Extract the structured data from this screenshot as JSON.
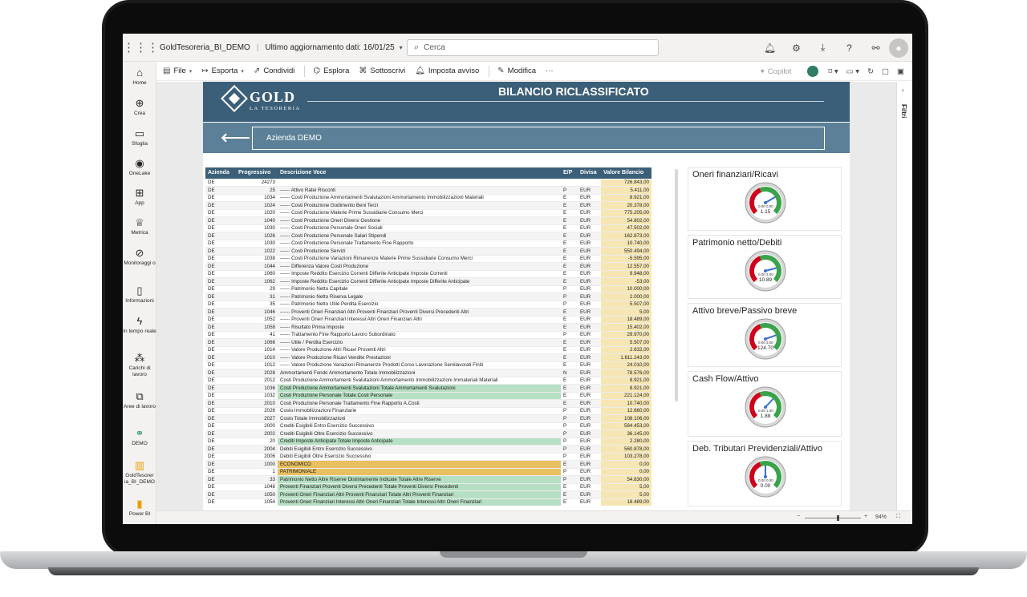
{
  "app": {
    "report_name": "GoldTesoreria_BI_DEMO",
    "last_update": "Ultimo aggiornamento dati: 16/01/25",
    "search_placeholder": "Cerca"
  },
  "leftnav": [
    {
      "label": "Home",
      "icon": "home-icon"
    },
    {
      "label": "Crea",
      "icon": "plus-circle-icon"
    },
    {
      "label": "Sfoglia",
      "icon": "folder-icon"
    },
    {
      "label": "OneLake",
      "icon": "onelake-icon"
    },
    {
      "label": "App",
      "icon": "apps-icon"
    },
    {
      "label": "Metrica",
      "icon": "trophy-icon"
    },
    {
      "label": "Monitoraggi o",
      "icon": "monitor-icon"
    },
    {
      "label": "Informazioni",
      "icon": "book-icon"
    },
    {
      "label": "In tempo reale",
      "icon": "lightning-icon"
    },
    {
      "label": "Carichi di lavoro",
      "icon": "workloads-icon"
    },
    {
      "label": "Aree di lavoro",
      "icon": "workspaces-icon"
    },
    {
      "label": "DEMO",
      "icon": "demo-workspace-icon"
    },
    {
      "label": "GoldTesorer ia_BI_DEMO",
      "icon": "report-icon"
    },
    {
      "label": "Power BI",
      "icon": "powerbi-icon"
    }
  ],
  "commands": {
    "file": "File",
    "export": "Esporta",
    "share": "Condividi",
    "explore": "Esplora",
    "subscribe": "Sottoscrivi",
    "alert": "Imposta avviso",
    "edit": "Modifica",
    "more": "···",
    "copilot": "Copilot"
  },
  "filters_label": "Filtri",
  "report": {
    "logo_text": "GOLD",
    "logo_sub": "LA TESORERIA",
    "title": "BILANCIO RICLASSIFICATO",
    "company": "Azienda DEMO"
  },
  "table": {
    "headers": [
      "Azienda",
      "Progressivo",
      "Descrizione Voce",
      "E/P",
      "Divisa",
      "Valore Bilancio"
    ],
    "rows": [
      [
        "DE",
        "24273",
        "",
        "",
        "",
        "726.843,00",
        ""
      ],
      [
        "DE",
        "25",
        "------ Attivo Ratei Risconti",
        "P",
        "EUR",
        "5.411,00",
        ""
      ],
      [
        "DE",
        "1034",
        "------ Costi Produzione Ammortamenti Svalutazioni Ammortamento Immobilizzazioni Materiali",
        "E",
        "EUR",
        "8.921,00",
        ""
      ],
      [
        "DE",
        "1024",
        "------ Costi Produzione Godimento Beni Terzi",
        "E",
        "EUR",
        "20.378,00",
        ""
      ],
      [
        "DE",
        "1020",
        "------ Costi Produzione Materie Prime Sussidiarie Consumo Merci",
        "E",
        "EUR",
        "775.205,00",
        ""
      ],
      [
        "DE",
        "1040",
        "------ Costi Produzione Oneri Diversi Gestione",
        "E",
        "EUR",
        "54.802,00",
        ""
      ],
      [
        "DE",
        "1030",
        "------ Costi Produzione Personale Oneri Sociali",
        "E",
        "EUR",
        "47.502,00",
        ""
      ],
      [
        "DE",
        "1026",
        "------ Costi Produzione Personale Salari Stipendi",
        "E",
        "EUR",
        "162.873,00",
        ""
      ],
      [
        "DE",
        "1030",
        "------ Costi Produzione Personale Trattamento Fine Rapporto",
        "E",
        "EUR",
        "10.740,00",
        ""
      ],
      [
        "DE",
        "1022",
        "------ Costi Produzione Servizi",
        "E",
        "EUR",
        "550.494,00",
        ""
      ],
      [
        "DE",
        "1038",
        "------ Costi Produzione Variazioni Rimanenze Materie Prime Sussidiarie Consumo Merci",
        "E",
        "EUR",
        "-5.595,00",
        ""
      ],
      [
        "DE",
        "1044",
        "------ Differenza Valore Costi Produzione",
        "E",
        "EUR",
        "12.557,00",
        ""
      ],
      [
        "DE",
        "1060",
        "------ Imposte Reddito Esercizio Correnti Differite Anticipate Imposte Correnti",
        "E",
        "EUR",
        "9.948,00",
        ""
      ],
      [
        "DE",
        "1062",
        "------ Imposte Reddito Esercizio Correnti Differite Anticipate Imposte Differite Anticipate",
        "E",
        "EUR",
        "-53,00",
        ""
      ],
      [
        "DE",
        "29",
        "------ Patrimonio Netto Capitale",
        "P",
        "EUR",
        "10.000,00",
        ""
      ],
      [
        "DE",
        "31",
        "------ Patrimonio Netto Riserva Legale",
        "P",
        "EUR",
        "2.000,00",
        ""
      ],
      [
        "DE",
        "35",
        "------ Patrimonio Netto Utile Perdita Esercizio",
        "P",
        "EUR",
        "5.507,00",
        ""
      ],
      [
        "DE",
        "1046",
        "------ Proventi Oneri Finanziari Altri Proventi Finanziari Proventi Diversi Precedenti Altri",
        "E",
        "EUR",
        "5,00",
        ""
      ],
      [
        "DE",
        "1052",
        "------ Proventi Oneri Finanziari Interessi Altri Oneri Finanziari Altri",
        "E",
        "EUR",
        "18.489,00",
        ""
      ],
      [
        "DE",
        "1058",
        "------ Risultato Prima Imposte",
        "E",
        "EUR",
        "15.402,00",
        ""
      ],
      [
        "DE",
        "41",
        "------ Trattamento Fine Rapporto Lavoro Subordinato",
        "P",
        "EUR",
        "29.970,00",
        ""
      ],
      [
        "DE",
        "1066",
        "------ Utile / Perdita Esercizio",
        "E",
        "EUR",
        "5.507,00",
        ""
      ],
      [
        "DE",
        "1014",
        "------ Valore Produzione Altri Ricavi Proventi Altri",
        "E",
        "EUR",
        "2.632,00",
        ""
      ],
      [
        "DE",
        "1010",
        "------ Valore Produzione Ricavi Vendite Prestazioni",
        "E",
        "EUR",
        "1.611.243,00",
        ""
      ],
      [
        "DE",
        "1012",
        "------ Valore Produzione Variazioni Rimanenze Prodotti Corso Lavorazione Semilavorati Finiti",
        "E",
        "EUR",
        "24.010,00",
        ""
      ],
      [
        "DE",
        "2028",
        "Ammortamenti Fondo Ammortamento Totale Immobilizzazioni",
        "N",
        "EUR",
        "78.576,00",
        ""
      ],
      [
        "DE",
        "2012",
        "Costi Produzione Ammortamenti Svalutazioni Ammortamento Immobilizzazioni Immateriali Materiali",
        "E",
        "EUR",
        "8.921,00",
        ""
      ],
      [
        "DE",
        "1036",
        "Costi Produzione Ammortamenti Svalutazioni Totale Ammortamenti Svalutazioni",
        "E",
        "EUR",
        "8.921,00",
        "green"
      ],
      [
        "DE",
        "1032",
        "Costi Produzione Personale Totale Costi Personale",
        "E",
        "EUR",
        "221.124,00",
        "green"
      ],
      [
        "DE",
        "2010",
        "Costi Produzione Personale Trattamento Fine Rapporto A.Costi",
        "E",
        "EUR",
        "10.740,00",
        ""
      ],
      [
        "DE",
        "2026",
        "Costo Immobilizzazioni Finanziarie",
        "P",
        "EUR",
        "12.660,00",
        ""
      ],
      [
        "DE",
        "2027",
        "Costo Totale Immobilizzazioni",
        "P",
        "EUR",
        "108.106,00",
        ""
      ],
      [
        "DE",
        "2000",
        "Crediti Esigibili Entro Esercizio Successivo",
        "P",
        "EUR",
        "564.453,00",
        ""
      ],
      [
        "DE",
        "2002",
        "Crediti Esigibili Oltre Esercizio Successivo",
        "P",
        "EUR",
        "36.145,00",
        ""
      ],
      [
        "DE",
        "20",
        "Crediti Imposte Anticipate Totale Imposte Anticipate",
        "P",
        "EUR",
        "2.280,00",
        "green"
      ],
      [
        "DE",
        "2004",
        "Debiti Esigibili Entro Esercizio Successivo",
        "P",
        "EUR",
        "560.878,00",
        ""
      ],
      [
        "DE",
        "2006",
        "Debiti Esigibili Oltre Esercizio Successivo",
        "P",
        "EUR",
        "103.278,00",
        ""
      ],
      [
        "DE",
        "1000",
        "ECONOMICO",
        "E",
        "EUR",
        "0,00",
        "gold"
      ],
      [
        "DE",
        "1",
        "PATRIMONIALE",
        "P",
        "EUR",
        "0,00",
        "gold"
      ],
      [
        "DE",
        "33",
        "Patrimonio Netto Altre Riserve Distintamente Indicate Totale Altre Riserve",
        "P",
        "EUR",
        "54.830,00",
        "green"
      ],
      [
        "DE",
        "1048",
        "Proventi Finanziari Proventi Diversi Precedenti Totale Proventi Diversi Precedenti",
        "E",
        "EUR",
        "5,00",
        "green"
      ],
      [
        "DE",
        "1050",
        "Proventi Oneri Finanziari Altri Proventi Finanziari Totale Altri Proventi Finanziari",
        "E",
        "EUR",
        "5,00",
        "green"
      ],
      [
        "DE",
        "1054",
        "Proventi Oneri Finanziari Interessi Altri Oneri Finanziari Totale Interessi Altri Oneri Finanziari",
        "E",
        "EUR",
        "18.489,00",
        "green"
      ]
    ]
  },
  "gauges": [
    {
      "title": "Oneri finanziari/Ricavi",
      "min": "0.00",
      "max": "0.00",
      "value": "1.15",
      "needle": 0.72
    },
    {
      "title": "Patrimonio netto/Debiti",
      "min": "0.00",
      "max": "3.00",
      "value": "10.89",
      "needle": 0.78
    },
    {
      "title": "Attivo breve/Passivo breve",
      "min": "0.00",
      "max": "3.00",
      "value": "124.70",
      "needle": 0.76
    },
    {
      "title": "Cash Flow/Attivo",
      "min": "0.00",
      "max": "1.00",
      "value": "1.88",
      "needle": 0.66
    },
    {
      "title": "Deb. Tributari Previdenziali/Attivo",
      "min": "0.00",
      "max": "0.00",
      "value": "0.00",
      "needle": 0.5
    }
  ],
  "statusbar": {
    "minus": "−",
    "plus": "+",
    "zoom": "94%"
  },
  "colors": {
    "header_dark": "#3b5f78",
    "header_light": "#5b8097",
    "value_highlight": "#f6e6b3",
    "row_green": "#b6dfc3",
    "row_gold": "#e8c060",
    "gauge_red": "#d0021b",
    "gauge_green": "#3aa34a"
  }
}
